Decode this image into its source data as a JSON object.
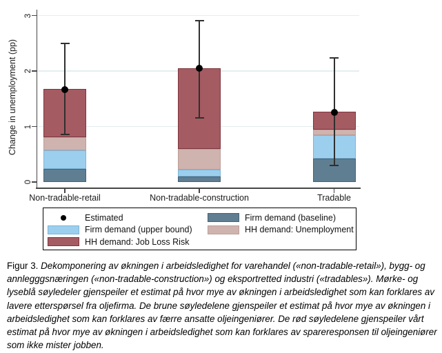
{
  "chart_data": {
    "type": "bar",
    "stacked": true,
    "title": "",
    "xlabel": "",
    "ylabel": "Change in unemployment (pp)",
    "ylim": [
      0,
      3
    ],
    "yticks": [
      0,
      1,
      2,
      3
    ],
    "grid": "horizontal gridlines at 1, 2, 3",
    "legend_position": "bottom",
    "categories": [
      "Non-tradable-retail",
      "Non-tradable-construction",
      "Tradable"
    ],
    "series": [
      {
        "name": "Firm demand (baseline)",
        "color": "#5f7e92",
        "border": "#466378",
        "values": [
          0.23,
          0.1,
          0.42
        ]
      },
      {
        "name": "Firm demand (upper bound)",
        "color": "#9ccfee",
        "border": "#7db4d6",
        "values": [
          0.34,
          0.12,
          0.42
        ]
      },
      {
        "name": "HH demand: Unemployment",
        "color": "#cfb3af",
        "border": "#bd9e99",
        "values": [
          0.24,
          0.38,
          0.1
        ]
      },
      {
        "name": "HH demand: Job Loss Risk",
        "color": "#a55b62",
        "border": "#7d353e",
        "values": [
          0.87,
          1.45,
          0.33
        ]
      }
    ],
    "estimated": {
      "name": "Estimated",
      "values": [
        1.67,
        2.05,
        1.26
      ],
      "ci_low": [
        0.86,
        1.16,
        0.3
      ],
      "ci_high": [
        2.5,
        2.91,
        2.23
      ],
      "marker_color": "#000000",
      "line_color": "#2f2f2f"
    }
  },
  "legend": {
    "items": [
      {
        "label": "Estimated",
        "marker": "dot",
        "color": "#000000",
        "border": "#000000"
      },
      {
        "label": "Firm demand (baseline)",
        "marker": "swatch",
        "color": "#5f7e92",
        "border": "#466378"
      },
      {
        "label": "Firm demand (upper bound)",
        "marker": "swatch",
        "color": "#9ccfee",
        "border": "#7db4d6"
      },
      {
        "label": "HH demand: Unemployment",
        "marker": "swatch",
        "color": "#cfb3af",
        "border": "#bd9e99"
      },
      {
        "label": "HH demand: Job Loss Risk",
        "marker": "swatch",
        "color": "#a55b62",
        "border": "#7d353e"
      }
    ]
  },
  "caption": {
    "label": "Figur 3.",
    "text": "Dekomponering av økningen i arbeidsledighet for varehandel («non-tradable-retail»), bygg- og annlegggsnæringen («non-tradable-construction») og eksportretted industri («tradables»). Mørke- og lyseblå søyledeler gjenspeiler et estimat på hvor mye av økningen i arbeidsledighet som kan forklares av lavere etterspørsel fra oljefirma. De brune søyledelene gjenspeiler et estimat på hvor mye av økningen i arbeidsledighet som kan forklares av færre ansatte oljeingeniører. De rød søyledelene gjenspeiler vårt estimat på hvor mye av økningen i arbeidsledighet som kan forklares av spareresponsen til oljeingeniører som ikke mister jobben."
  }
}
